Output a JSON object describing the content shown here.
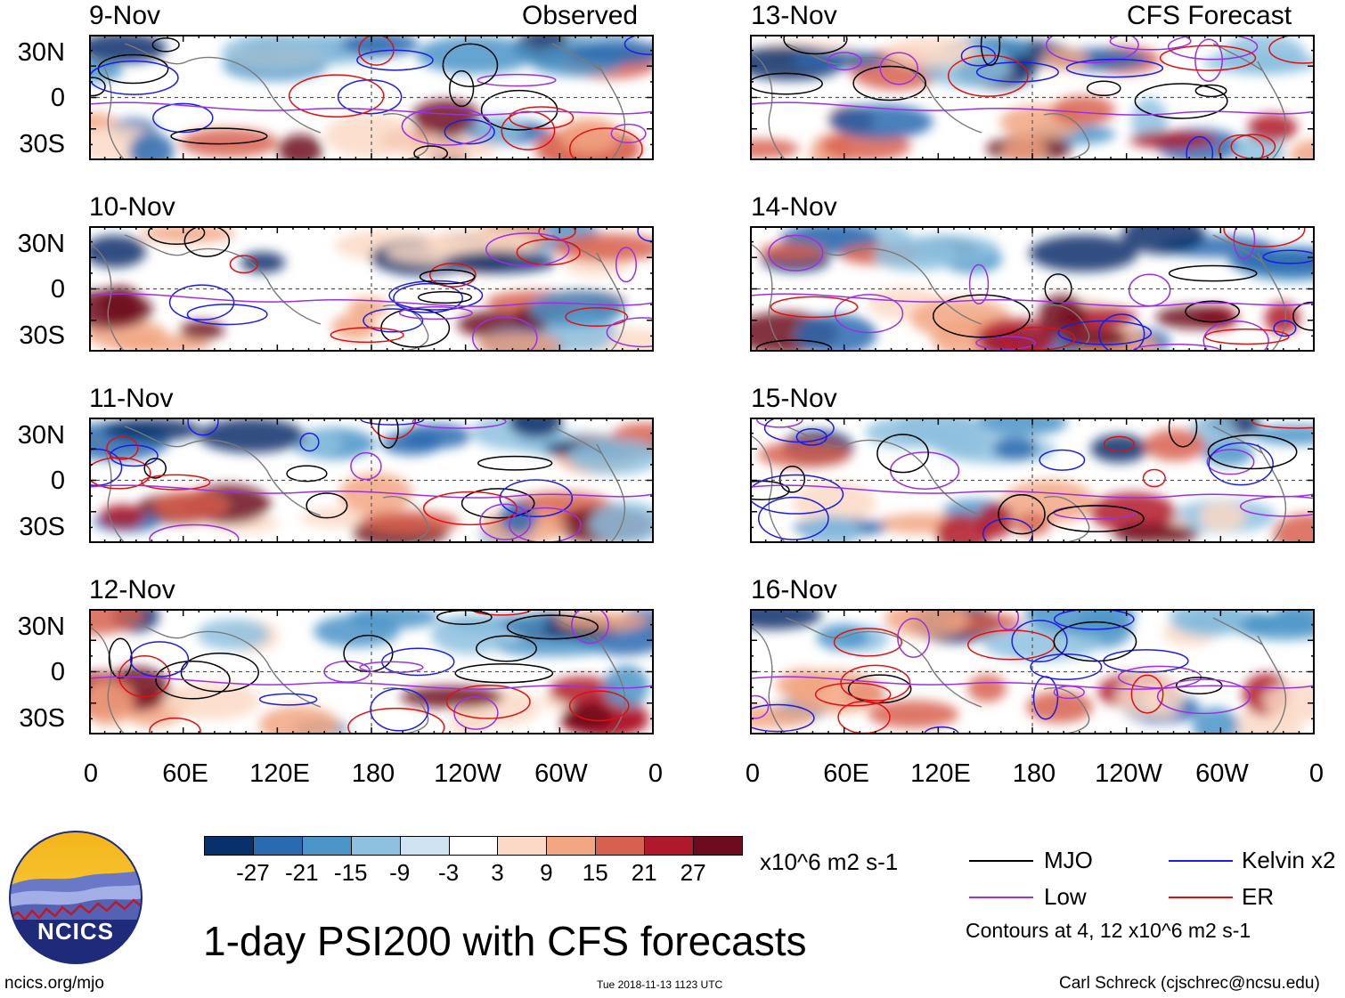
{
  "panels": {
    "observed_heading": "Observed",
    "forecast_heading": "CFS Forecast",
    "observed_dates": [
      "9-Nov",
      "10-Nov",
      "11-Nov",
      "12-Nov"
    ],
    "forecast_dates": [
      "13-Nov",
      "14-Nov",
      "15-Nov",
      "16-Nov"
    ]
  },
  "axes": {
    "latitude_labels": [
      "30N",
      "0",
      "30S"
    ],
    "longitude_labels": [
      "0",
      "60E",
      "120E",
      "180",
      "120W",
      "60W",
      "0"
    ]
  },
  "colorbar": {
    "ticks": [
      "-27",
      "-21",
      "-15",
      "-9",
      "-3",
      "3",
      "9",
      "15",
      "21",
      "27"
    ],
    "colors": [
      "#08306b",
      "#2a6ab0",
      "#4b94c8",
      "#8ec1df",
      "#cfe4f2",
      "#ffffff",
      "#fbd9c6",
      "#f2a682",
      "#d8604f",
      "#b0182b",
      "#6e0a1d"
    ],
    "units": "x10^6 m2 s-1"
  },
  "legend": {
    "items": [
      {
        "label": "MJO",
        "color": "#000000"
      },
      {
        "label": "Kelvin x2",
        "color": "#1c1ce6"
      },
      {
        "label": "Low",
        "color": "#9b30e0"
      },
      {
        "label": "ER",
        "color": "#e01010"
      }
    ],
    "contours_note": "Contours at 4, 12 x10^6 m2 s-1"
  },
  "logo": {
    "text": "NCICS"
  },
  "title": "1-day PSI200 with CFS forecasts",
  "footer": {
    "url": "ncics.org/mjo",
    "timestamp": "Tue 2018-11-13 1123 UTC",
    "credit": "Carl Schreck (cjschrec@ncsu.edu)"
  }
}
